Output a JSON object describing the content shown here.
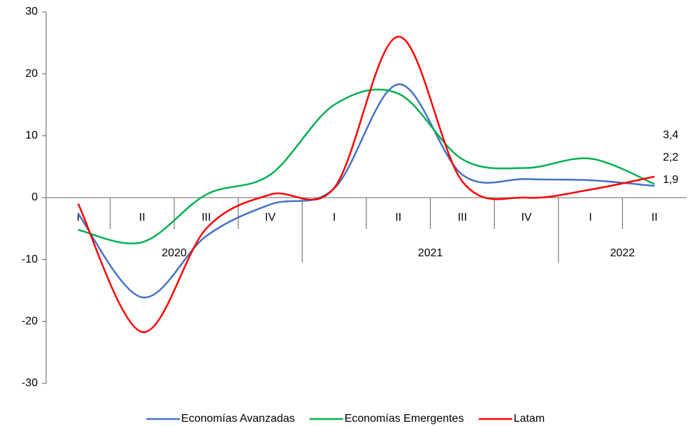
{
  "chart_data": {
    "type": "line",
    "categories": [
      "I",
      "II",
      "III",
      "IV",
      "I",
      "II",
      "III",
      "IV",
      "I",
      "II"
    ],
    "groups": [
      {
        "label": "2020",
        "count": 4
      },
      {
        "label": "2021",
        "count": 4
      },
      {
        "label": "2022",
        "count": 2
      }
    ],
    "series": [
      {
        "name": "Economías Avanzadas",
        "color": "#4472c4",
        "values": [
          -2.6,
          -16.1,
          -6.2,
          -1.1,
          1.5,
          18.3,
          3.7,
          3.0,
          2.8,
          1.9
        ],
        "value_labels": [
          null,
          null,
          null,
          null,
          null,
          null,
          null,
          null,
          null,
          "1,9"
        ],
        "label_color": "#2e75b6"
      },
      {
        "name": "Economías Emergentes",
        "color": "#00b050",
        "values": [
          -5.2,
          -7.2,
          0.5,
          3.7,
          15.0,
          16.8,
          6.2,
          4.8,
          6.3,
          2.2
        ],
        "value_labels": [
          null,
          null,
          null,
          null,
          null,
          null,
          null,
          null,
          null,
          "2,2"
        ],
        "label_color": "#00b050"
      },
      {
        "name": "Latam",
        "color": "#ff0000",
        "values": [
          -1.0,
          -21.7,
          -5.0,
          0.5,
          1.6,
          26.0,
          2.6,
          0.0,
          1.3,
          3.4
        ],
        "value_labels": [
          null,
          null,
          null,
          null,
          null,
          null,
          null,
          null,
          null,
          "3,4"
        ],
        "label_color": "#ff0000"
      }
    ],
    "ylim": [
      -30,
      30
    ],
    "yticks": [
      -30,
      -20,
      -10,
      0,
      10,
      20,
      30
    ],
    "grid": false,
    "legend": "bottom"
  }
}
